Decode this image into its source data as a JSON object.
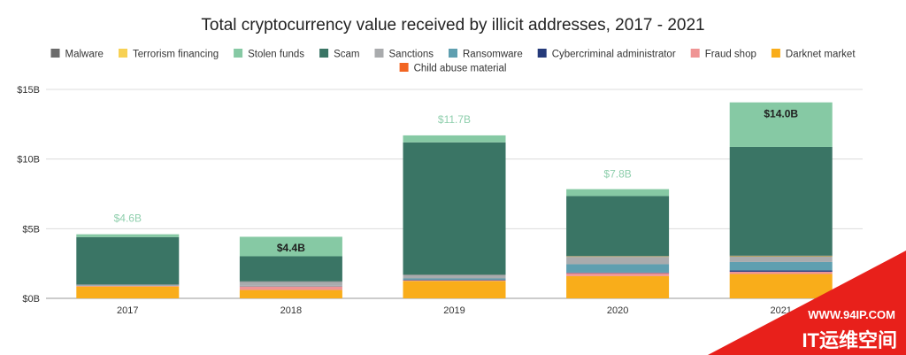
{
  "chart_data": {
    "type": "bar",
    "stacked": true,
    "title": "Total cryptocurrency value received by illicit addresses, 2017 - 2021",
    "xlabel": "",
    "ylabel": "",
    "ylim": [
      0,
      15
    ],
    "y_ticks": [
      {
        "value": 0,
        "label": "$0B"
      },
      {
        "value": 5,
        "label": "$5B"
      },
      {
        "value": 10,
        "label": "$10B"
      },
      {
        "value": 15,
        "label": "$15B"
      }
    ],
    "grid": true,
    "legend_position": "top",
    "categories": [
      "2017",
      "2018",
      "2019",
      "2020",
      "2021"
    ],
    "series": [
      {
        "name": "Malware",
        "color": "#6b6b6b",
        "values": [
          0.02,
          0.02,
          0.02,
          0.03,
          0.05
        ]
      },
      {
        "name": "Terrorism financing",
        "color": "#f7d154",
        "values": [
          0.0,
          0.0,
          0.0,
          0.01,
          0.01
        ]
      },
      {
        "name": "Stolen funds",
        "color": "#86c9a4",
        "values": [
          0.2,
          1.4,
          0.5,
          0.5,
          3.2
        ]
      },
      {
        "name": "Scam",
        "color": "#3a7565",
        "values": [
          3.4,
          1.8,
          9.5,
          4.3,
          7.8
        ]
      },
      {
        "name": "Sanctions",
        "color": "#a9abad",
        "values": [
          0.05,
          0.3,
          0.25,
          0.55,
          0.4
        ]
      },
      {
        "name": "Ransomware",
        "color": "#5f9fb0",
        "values": [
          0.01,
          0.04,
          0.1,
          0.6,
          0.6
        ]
      },
      {
        "name": "Cybercriminal administrator",
        "color": "#253a7a",
        "values": [
          0.0,
          0.0,
          0.02,
          0.02,
          0.1
        ]
      },
      {
        "name": "Fraud shop",
        "color": "#ef9494",
        "values": [
          0.07,
          0.26,
          0.06,
          0.23,
          0.16
        ]
      },
      {
        "name": "Darknet market",
        "color": "#f9ad1a",
        "values": [
          0.85,
          0.6,
          1.25,
          1.6,
          1.75
        ]
      },
      {
        "name": "Child abuse material",
        "color": "#f26522",
        "values": [
          0.0,
          0.0,
          0.0,
          0.0,
          0.0
        ]
      }
    ],
    "stack_order_bottom_to_top": [
      "Darknet market",
      "Child abuse material",
      "Fraud shop",
      "Cybercriminal administrator",
      "Ransomware",
      "Sanctions",
      "Terrorism financing",
      "Malware",
      "Scam",
      "Stolen funds"
    ],
    "totals": [
      {
        "category": "2017",
        "value": 4.6,
        "label": "$4.6B",
        "placement": "above"
      },
      {
        "category": "2018",
        "value": 4.4,
        "label": "$4.4B",
        "placement": "inside"
      },
      {
        "category": "2019",
        "value": 11.7,
        "label": "$11.7B",
        "placement": "above"
      },
      {
        "category": "2020",
        "value": 7.8,
        "label": "$7.8B",
        "placement": "above"
      },
      {
        "category": "2021",
        "value": 14.0,
        "label": "$14.0B",
        "placement": "inside"
      }
    ]
  },
  "colors": {
    "grid": "#dcdcdc",
    "axis": "#999999",
    "total_label_outside": "#8fcfad",
    "total_label_inside": "#1f1f1f",
    "watermark_red": "#e8201b"
  },
  "watermark": {
    "url": "WWW.94IP.COM",
    "brand": "IT运维空间"
  }
}
